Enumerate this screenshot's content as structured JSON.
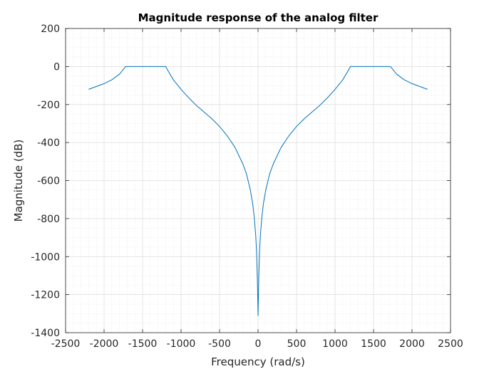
{
  "chart_data": {
    "type": "line",
    "title": "Magnitude response of the analog filter",
    "xlabel": "Frequency (rad/s)",
    "ylabel": "Magnitude (dB)",
    "xlim": [
      -2500,
      2500
    ],
    "ylim": [
      -1400,
      200
    ],
    "xticks": [
      -2500,
      -2000,
      -1500,
      -1000,
      -500,
      0,
      500,
      1000,
      1500,
      2000,
      2500
    ],
    "yticks": [
      -1400,
      -1200,
      -1000,
      -800,
      -600,
      -400,
      -200,
      0,
      200
    ],
    "grid": true,
    "minor_grid": true,
    "series": [
      {
        "name": "Magnitude",
        "color": "#0072BD",
        "x": [
          -2200,
          -2000,
          -1900,
          -1800,
          -1750,
          -1720,
          -1600,
          -1400,
          -1250,
          -1200,
          -1180,
          -1100,
          -1000,
          -900,
          -800,
          -700,
          -600,
          -500,
          -400,
          -300,
          -200,
          -150,
          -100,
          -70,
          -50,
          -30,
          -20,
          -10,
          -5,
          0,
          5,
          10,
          20,
          30,
          50,
          70,
          100,
          150,
          200,
          300,
          400,
          500,
          600,
          700,
          800,
          900,
          1000,
          1100,
          1180,
          1200,
          1250,
          1400,
          1600,
          1720,
          1750,
          1800,
          1900,
          2000,
          2200
        ],
        "y": [
          -120,
          -90,
          -70,
          -40,
          -15,
          0,
          0,
          0,
          0,
          0,
          -15,
          -70,
          -120,
          -165,
          -205,
          -240,
          -275,
          -315,
          -365,
          -425,
          -510,
          -565,
          -650,
          -720,
          -790,
          -890,
          -970,
          -1100,
          -1200,
          -1310,
          -1200,
          -1100,
          -970,
          -890,
          -790,
          -720,
          -650,
          -565,
          -510,
          -425,
          -365,
          -315,
          -275,
          -240,
          -205,
          -165,
          -120,
          -70,
          -15,
          0,
          0,
          0,
          0,
          0,
          -15,
          -40,
          -70,
          -90,
          -120
        ]
      }
    ]
  }
}
